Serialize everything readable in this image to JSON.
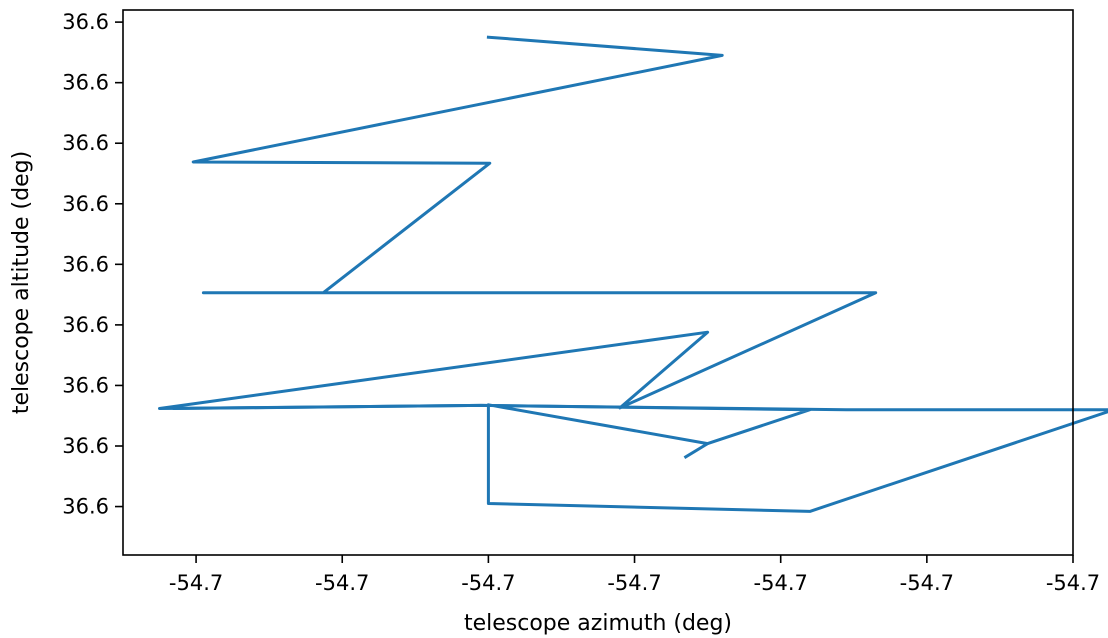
{
  "chart_data": {
    "type": "line",
    "title": "",
    "xlabel": "telescope azimuth (deg)",
    "ylabel": "telescope altitude (deg)",
    "x_tick_labels": [
      "-54.7",
      "-54.7",
      "-54.7",
      "-54.7",
      "-54.7",
      "-54.7",
      "-54.7"
    ],
    "y_tick_labels": [
      "36.6",
      "36.6",
      "36.6",
      "36.6",
      "36.6",
      "36.6",
      "36.6",
      "36.6",
      "36.6"
    ],
    "x_ticks": [
      -54.7034,
      -54.7024,
      -54.7014,
      -54.7004,
      -54.6994,
      -54.6984,
      -54.6974
    ],
    "y_ticks": [
      36.608,
      36.607,
      36.606,
      36.605,
      36.604,
      36.603,
      36.602,
      36.601,
      36.6
    ],
    "xlim": [
      -54.7039,
      -54.6974
    ],
    "ylim": [
      36.5992,
      36.6082
    ],
    "grid": false,
    "series": [
      {
        "color": "#1f77b4",
        "points": [
          [
            -54.7014,
            36.60775
          ],
          [
            -54.6998,
            36.60745
          ],
          [
            -54.70342,
            36.60569
          ],
          [
            -54.70139,
            36.60567
          ],
          [
            -54.70253,
            36.60353
          ],
          [
            -54.70335,
            36.60353
          ],
          [
            -54.69875,
            36.60353
          ],
          [
            -54.7005,
            36.60163
          ],
          [
            -54.6999,
            36.60288
          ],
          [
            -54.70365,
            36.60162
          ],
          [
            -54.70145,
            36.60167
          ],
          [
            -54.69895,
            36.6016
          ],
          [
            -54.69712,
            36.6016
          ],
          [
            -54.6992,
            36.59992
          ],
          [
            -54.7014,
            36.60005
          ],
          [
            -54.7014,
            36.60168
          ],
          [
            -54.6999,
            36.60104
          ],
          [
            -54.70005,
            36.60082
          ]
        ]
      },
      {
        "color": "#1f77b4",
        "points": [
          [
            -54.6999,
            36.60104
          ],
          [
            -54.6992,
            36.6016
          ],
          [
            -54.70145,
            36.60167
          ],
          [
            -54.70355,
            36.60162
          ]
        ]
      }
    ]
  }
}
